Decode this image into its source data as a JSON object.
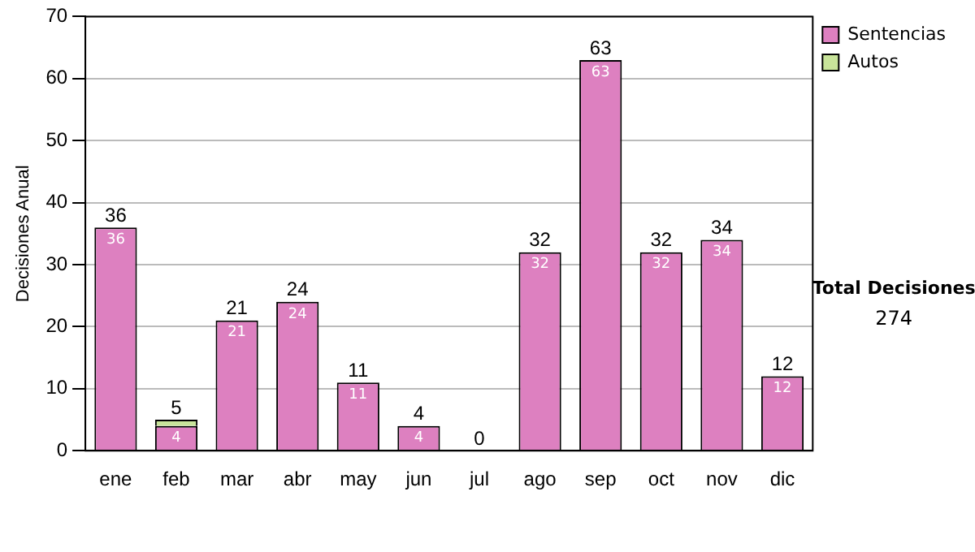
{
  "chart_data": {
    "type": "bar",
    "stacked": true,
    "ylabel": "Decisiones Anual",
    "categories": [
      "ene",
      "feb",
      "mar",
      "abr",
      "may",
      "jun",
      "jul",
      "ago",
      "sep",
      "oct",
      "nov",
      "dic"
    ],
    "series": [
      {
        "name": "Sentencias",
        "color": "#dd80c0",
        "values": [
          36,
          4,
          21,
          24,
          11,
          4,
          0,
          32,
          63,
          32,
          34,
          12
        ],
        "value_labels": [
          "36",
          "4",
          "21",
          "24",
          "11",
          "4",
          null,
          "32",
          "63",
          "32",
          "34",
          "12"
        ]
      },
      {
        "name": "Autos",
        "color": "#c8e49a",
        "values": [
          0,
          1,
          0,
          0,
          0,
          0,
          0,
          0,
          0,
          0,
          0,
          0
        ]
      }
    ],
    "totals": [
      "36",
      "5",
      "21",
      "24",
      "11",
      "4",
      "0",
      "32",
      "63",
      "32",
      "34",
      "12"
    ],
    "ylim": [
      0,
      70
    ],
    "yticks": [
      0,
      10,
      20,
      30,
      40,
      50,
      60,
      70
    ],
    "grid": "y",
    "legend": "right",
    "annotations": [
      "Total Decisiones",
      "274"
    ]
  }
}
